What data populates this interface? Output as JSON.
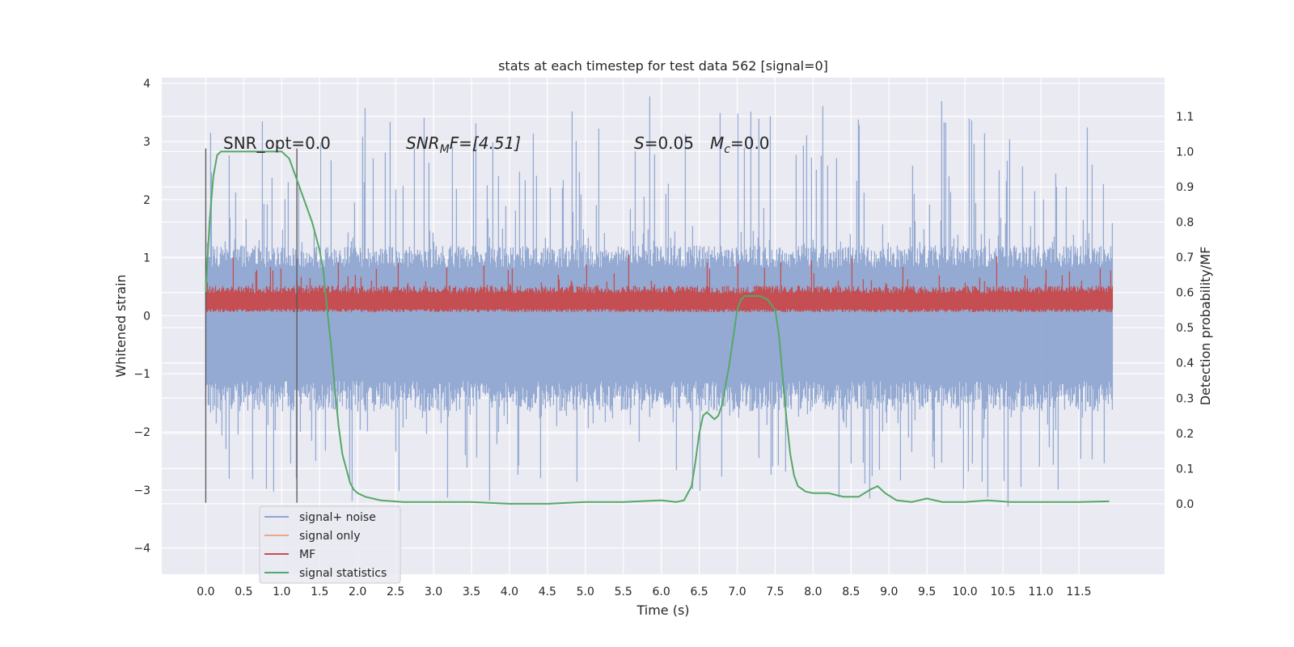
{
  "chart_data": {
    "type": "line",
    "title": "stats at each timestep for test data 562 [signal=0]",
    "xlabel": "Time (s)",
    "ylabel": "Whitened strain",
    "ylabel_right": "Detection probability/MF",
    "xlim": [
      -0.58,
      12.63
    ],
    "ylim": [
      -4.45,
      4.1
    ],
    "ylim_right": [
      -0.2,
      1.21
    ],
    "x_ticks": [
      "0.0",
      "0.5",
      "1.0",
      "1.5",
      "2.0",
      "2.5",
      "3.0",
      "3.5",
      "4.0",
      "4.5",
      "5.0",
      "5.5",
      "6.0",
      "6.5",
      "7.0",
      "7.5",
      "8.0",
      "8.5",
      "9.0",
      "9.5",
      "10.0",
      "10.5",
      "11.0",
      "11.5"
    ],
    "y_ticks": [
      "4",
      "3",
      "2",
      "1",
      "0",
      "−1",
      "−2",
      "−3",
      "−4"
    ],
    "y_ticks_right": [
      "1.1",
      "1.0",
      "0.9",
      "0.8",
      "0.7",
      "0.6",
      "0.5",
      "0.4",
      "0.3",
      "0.2",
      "0.1",
      "0.0"
    ],
    "grid": true,
    "legend_position": "lower-left",
    "annotations": {
      "snr_opt": "SNR_opt=0.0",
      "snr_mf_base": "SNR",
      "snr_mf_sub": "M",
      "snr_mf_rest": "F=[4.51]",
      "s_label": "S",
      "s_value": "=0.05",
      "mc_base": "M",
      "mc_sub": "c",
      "mc_value": "=0.0"
    },
    "vertical_markers": [
      0.0,
      1.2
    ],
    "series": [
      {
        "name": "signal+ noise",
        "color": "#8fa6d0",
        "axis": "left",
        "t_end": 11.95,
        "core_low": -1.5,
        "core_high": 1.1,
        "peak_low": -3.3,
        "peak_high": 3.7
      },
      {
        "name": "signal only",
        "color": "#e8a88b",
        "axis": "left",
        "values": []
      },
      {
        "name": "MF",
        "color": "#c44e52",
        "axis": "left",
        "t_end": 11.95,
        "core_low": 0.1,
        "core_high": 0.45,
        "peak_high": 1.0
      },
      {
        "name": "signal statistics",
        "color": "#55a868",
        "axis": "right",
        "x": [
          0.0,
          0.05,
          0.1,
          0.15,
          0.2,
          0.3,
          0.5,
          0.8,
          1.0,
          1.1,
          1.2,
          1.3,
          1.4,
          1.5,
          1.55,
          1.6,
          1.65,
          1.7,
          1.75,
          1.8,
          1.85,
          1.9,
          1.95,
          2.0,
          2.1,
          2.3,
          2.6,
          3.0,
          3.5,
          4.0,
          4.5,
          5.0,
          5.5,
          6.0,
          6.2,
          6.3,
          6.4,
          6.45,
          6.5,
          6.55,
          6.6,
          6.65,
          6.7,
          6.75,
          6.8,
          6.9,
          7.0,
          7.05,
          7.1,
          7.2,
          7.3,
          7.4,
          7.5,
          7.55,
          7.6,
          7.65,
          7.7,
          7.75,
          7.8,
          7.9,
          8.0,
          8.2,
          8.4,
          8.6,
          8.75,
          8.85,
          8.95,
          9.1,
          9.3,
          9.5,
          9.7,
          10.0,
          10.3,
          10.6,
          11.0,
          11.5,
          11.9
        ],
        "y": [
          0.6,
          0.8,
          0.93,
          0.99,
          1.0,
          1.0,
          1.0,
          1.0,
          1.0,
          0.98,
          0.92,
          0.86,
          0.8,
          0.72,
          0.66,
          0.55,
          0.45,
          0.33,
          0.22,
          0.14,
          0.1,
          0.06,
          0.04,
          0.03,
          0.02,
          0.01,
          0.005,
          0.005,
          0.005,
          0.0,
          0.0,
          0.005,
          0.005,
          0.01,
          0.005,
          0.01,
          0.05,
          0.12,
          0.2,
          0.25,
          0.26,
          0.25,
          0.24,
          0.25,
          0.28,
          0.4,
          0.55,
          0.58,
          0.59,
          0.59,
          0.59,
          0.58,
          0.55,
          0.48,
          0.36,
          0.24,
          0.14,
          0.08,
          0.05,
          0.035,
          0.03,
          0.03,
          0.02,
          0.02,
          0.04,
          0.05,
          0.03,
          0.01,
          0.005,
          0.015,
          0.005,
          0.005,
          0.01,
          0.005,
          0.005,
          0.005,
          0.007
        ]
      }
    ]
  }
}
